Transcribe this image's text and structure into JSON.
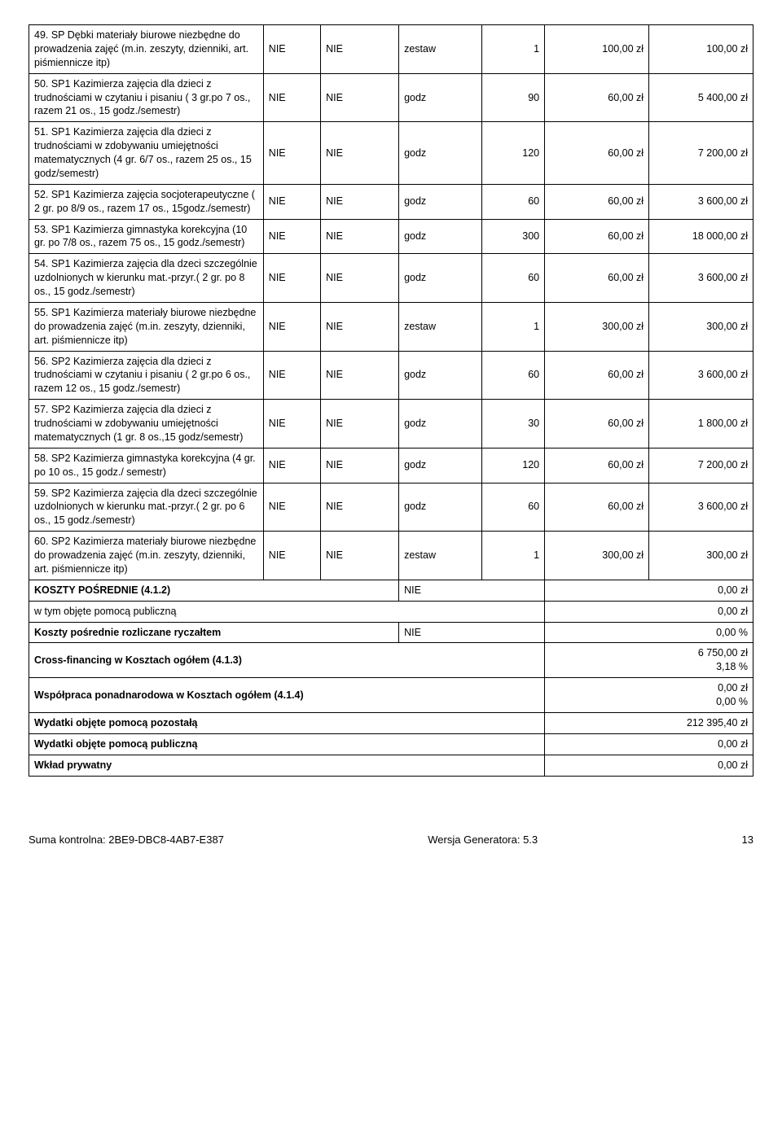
{
  "rows": [
    {
      "desc": "49. SP Dębki materiały biurowe niezbędne do prowadzenia zajęć (m.in. zeszyty, dzienniki, art. piśmiennicze itp)",
      "c1": "NIE",
      "c2": "NIE",
      "unit": "zestaw",
      "qty": "1",
      "price": "100,00 zł",
      "total": "100,00 zł"
    },
    {
      "desc": "50. SP1 Kazimierza zajęcia dla dzieci z trudnościami w czytaniu i pisaniu ( 3 gr.po 7 os., razem 21 os., 15 godz./semestr)",
      "c1": "NIE",
      "c2": "NIE",
      "unit": "godz",
      "qty": "90",
      "price": "60,00 zł",
      "total": "5 400,00 zł"
    },
    {
      "desc": "51. SP1 Kazimierza zajęcia dla dzieci z trudnościami w zdobywaniu umiejętności matematycznych (4 gr. 6/7 os., razem 25 os., 15 godz/semestr)",
      "c1": "NIE",
      "c2": "NIE",
      "unit": "godz",
      "qty": "120",
      "price": "60,00 zł",
      "total": "7 200,00 zł"
    },
    {
      "desc": "52. SP1 Kazimierza zajęcia socjoterapeutyczne ( 2 gr. po 8/9 os., razem 17 os., 15godz./semestr)",
      "c1": "NIE",
      "c2": "NIE",
      "unit": "godz",
      "qty": "60",
      "price": "60,00 zł",
      "total": "3 600,00 zł"
    },
    {
      "desc": "53. SP1 Kazimierza gimnastyka korekcyjna (10 gr. po 7/8 os., razem 75 os., 15 godz./semestr)",
      "c1": "NIE",
      "c2": "NIE",
      "unit": "godz",
      "qty": "300",
      "price": "60,00 zł",
      "total": "18 000,00 zł"
    },
    {
      "desc": "54. SP1 Kazimierza zajęcia dla dzeci szczególnie uzdolnionych w kierunku mat.-przyr.( 2 gr. po 8 os., 15 godz./semestr)",
      "c1": "NIE",
      "c2": "NIE",
      "unit": "godz",
      "qty": "60",
      "price": "60,00 zł",
      "total": "3 600,00 zł"
    },
    {
      "desc": "55. SP1 Kazimierza materiały biurowe niezbędne do prowadzenia zajęć (m.in. zeszyty, dzienniki, art. piśmiennicze itp)",
      "c1": "NIE",
      "c2": "NIE",
      "unit": "zestaw",
      "qty": "1",
      "price": "300,00 zł",
      "total": "300,00 zł"
    },
    {
      "desc": "56. SP2 Kazimierza zajęcia dla dzieci z trudnościami w czytaniu i pisaniu ( 2 gr.po 6 os., razem 12 os., 15 godz./semestr)",
      "c1": "NIE",
      "c2": "NIE",
      "unit": "godz",
      "qty": "60",
      "price": "60,00 zł",
      "total": "3 600,00 zł"
    },
    {
      "desc": "57. SP2 Kazimierza zajęcia dla dzieci z trudnościami w zdobywaniu umiejętności matematycznych (1 gr. 8 os.,15 godz/semestr)",
      "c1": "NIE",
      "c2": "NIE",
      "unit": "godz",
      "qty": "30",
      "price": "60,00 zł",
      "total": "1 800,00 zł"
    },
    {
      "desc": "58. SP2 Kazimierza gimnastyka korekcyjna (4 gr. po 10 os., 15 godz./ semestr)",
      "c1": "NIE",
      "c2": "NIE",
      "unit": "godz",
      "qty": "120",
      "price": "60,00 zł",
      "total": "7 200,00 zł"
    },
    {
      "desc": "59. SP2 Kazimierza zajęcia dla dzeci szczególnie uzdolnionych w kierunku mat.-przyr.( 2 gr. po 6 os., 15 godz./semestr)",
      "c1": "NIE",
      "c2": "NIE",
      "unit": "godz",
      "qty": "60",
      "price": "60,00 zł",
      "total": "3 600,00 zł"
    },
    {
      "desc": "60. SP2 Kazimierza materiały biurowe niezbędne do prowadzenia zajęć (m.in. zeszyty, dzienniki, art. piśmiennicze itp)",
      "c1": "NIE",
      "c2": "NIE",
      "unit": "zestaw",
      "qty": "1",
      "price": "300,00 zł",
      "total": "300,00 zł"
    }
  ],
  "summary": {
    "koszty_posrednie": {
      "label": "KOSZTY POŚREDNIE (4.1.2)",
      "mid": "NIE",
      "val": "0,00 zł"
    },
    "wtym": {
      "label": "w tym objęte pomocą publiczną",
      "val": "0,00 zł"
    },
    "ryczalt": {
      "label": "Koszty pośrednie rozliczane ryczałtem",
      "mid": "NIE",
      "val": "0,00 %"
    },
    "cross": {
      "label": "Cross-financing w Kosztach ogółem (4.1.3)",
      "val1": "6 750,00 zł",
      "val2": "3,18 %"
    },
    "wspolpraca": {
      "label": "Współpraca ponadnarodowa w Kosztach ogółem (4.1.4)",
      "val1": "0,00 zł",
      "val2": "0,00 %"
    },
    "pozostala": {
      "label": "Wydatki objęte pomocą pozostałą",
      "val": "212 395,40 zł"
    },
    "publiczna": {
      "label": "Wydatki objęte pomocą publiczną",
      "val": "0,00 zł"
    },
    "wklad": {
      "label": "Wkład prywatny",
      "val": "0,00 zł"
    }
  },
  "footer": {
    "suma": "Suma kontrolna: 2BE9-DBC8-4AB7-E387",
    "wersja": "Wersja Generatora: 5.3",
    "page": "13"
  }
}
